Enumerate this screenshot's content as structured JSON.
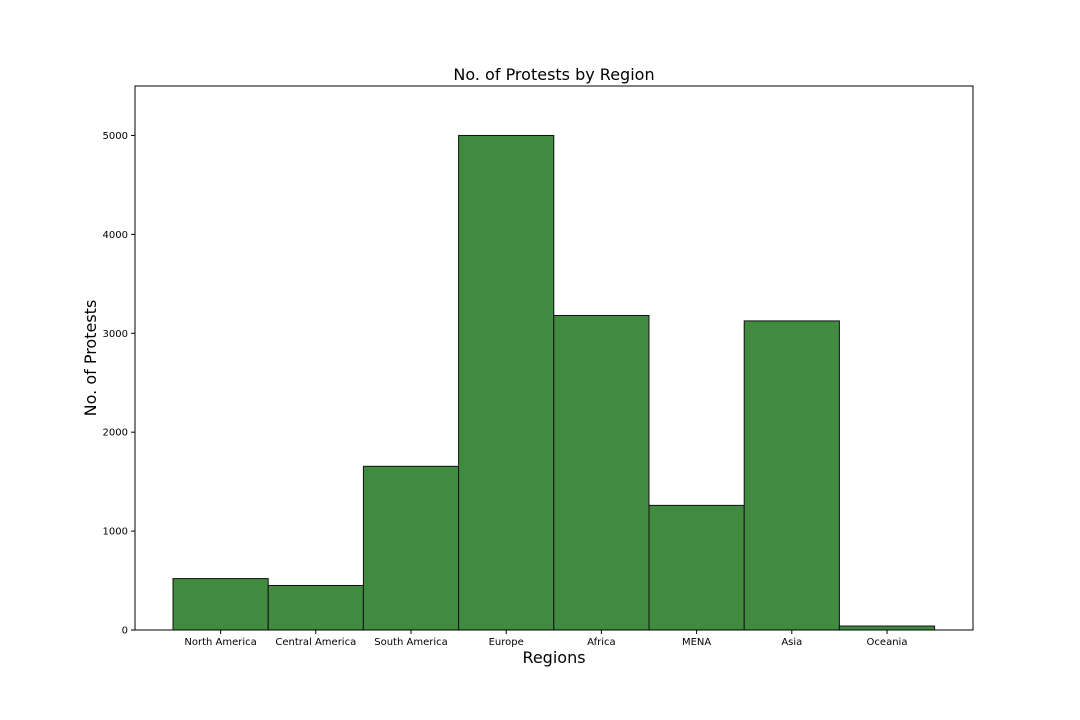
{
  "chart_data": {
    "type": "bar",
    "title": "No. of Protests by Region",
    "xlabel": "Regions",
    "ylabel": "No. of Protests",
    "categories": [
      "North America",
      "Central America",
      "South America",
      "Europe",
      "Africa",
      "MENA",
      "Asia",
      "Oceania"
    ],
    "values": [
      520,
      450,
      1655,
      5000,
      3180,
      1260,
      3125,
      40
    ],
    "ylim": [
      0,
      5500
    ],
    "yticks": [
      0,
      1000,
      2000,
      3000,
      4000,
      5000
    ],
    "grid": false,
    "legend": "none",
    "bar_color": "#418b40",
    "edge_color": "#111111"
  }
}
